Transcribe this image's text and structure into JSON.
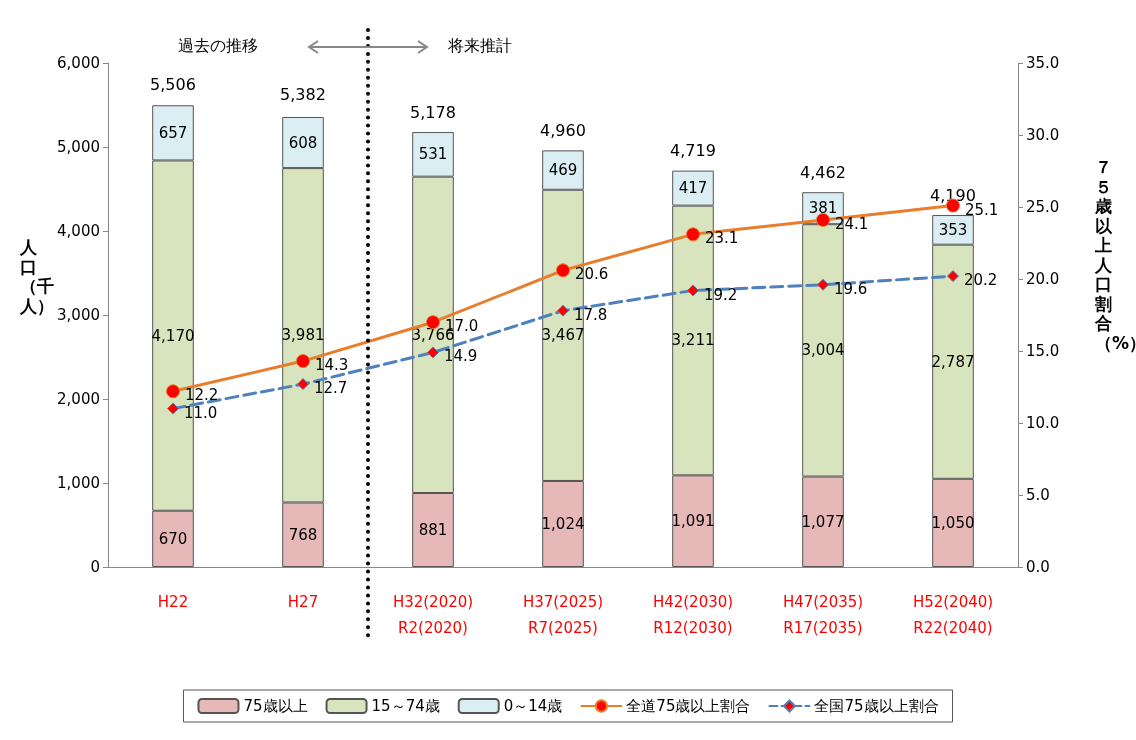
{
  "chart_data": {
    "type": "bar",
    "stacked": true,
    "ylabel": "人口（千人）",
    "y2label": "７５歳以上人口割合（%）",
    "annotations": [
      "過去の推移",
      "将来推計",
      {
        "text": "5,506",
        "x": "H22",
        "y": 5506
      },
      {
        "text": "5,382",
        "x": "H27",
        "y": 5382
      },
      {
        "text": "5,178",
        "x": "H32(2020)\nR2(2020)",
        "y": 5178
      },
      {
        "text": "4,960",
        "x": "H37(2025)\nR7(2025)",
        "y": 4960
      },
      {
        "text": "4,719",
        "x": "H42(2030)\nR12(2030)",
        "y": 4719
      },
      {
        "text": "4,462",
        "x": "H47(2035)\nR17(2035)",
        "y": 4462
      },
      {
        "text": "4,190",
        "x": "H52(2040)\nR22(2040)",
        "y": 4190
      }
    ],
    "categories": [
      "H22",
      "H27",
      "H32(2020)\nR2(2020)",
      "H37(2025)\nR7(2025)",
      "H42(2030)\nR12(2030)",
      "H47(2035)\nR17(2035)",
      "H52(2040)\nR22(2040)"
    ],
    "series": [
      {
        "name": "75歳以上",
        "color": "#e6b9b8",
        "values": [
          670,
          768,
          881,
          1024,
          1091,
          1077,
          1050
        ],
        "value_labels": [
          "670",
          "768",
          "881",
          "1,024",
          "1,091",
          "1,077",
          "1,050"
        ]
      },
      {
        "name": "15～74歳",
        "color": "#d7e4bd",
        "values": [
          4170,
          3981,
          3766,
          3467,
          3211,
          3004,
          2787
        ],
        "value_labels": [
          "4,170",
          "3,981",
          "3,766",
          "3,467",
          "3,211",
          "3,004",
          "2,787"
        ]
      },
      {
        "name": "0～14歳",
        "color": "#dbeef4",
        "values": [
          657,
          608,
          531,
          469,
          417,
          381,
          353
        ],
        "value_labels": [
          "657",
          "608",
          "531",
          "469",
          "417",
          "381",
          "353"
        ]
      },
      {
        "name": "全道75歳以上割合",
        "type": "line",
        "axis": "y2",
        "color": "#e87d2c",
        "marker": "circle",
        "line_style": "solid",
        "values": [
          12.2,
          14.3,
          17.0,
          20.6,
          23.1,
          24.1,
          25.1
        ],
        "value_labels": [
          "12.2",
          "14.3",
          "17.0",
          "20.6",
          "23.1",
          "24.1",
          "25.1"
        ]
      },
      {
        "name": "全国75歳以上割合",
        "type": "line",
        "axis": "y2",
        "color": "#4f81bd",
        "marker": "diamond",
        "line_style": "dashed",
        "values": [
          11.0,
          12.7,
          14.9,
          17.8,
          19.2,
          19.6,
          20.2
        ],
        "value_labels": [
          "11.0",
          "12.7",
          "14.9",
          "17.8",
          "19.2",
          "19.6",
          "20.2"
        ]
      }
    ],
    "ylim": [
      0,
      6000
    ],
    "yticks": [
      0,
      {
        "value": 1000,
        "label": "1,000"
      },
      {
        "value": 2000,
        "label": "2,000"
      },
      {
        "value": 3000,
        "label": "3,000"
      },
      {
        "value": 4000,
        "label": "4,000"
      },
      {
        "value": 5000,
        "label": "5,000"
      },
      {
        "value": 6000,
        "label": "6,000"
      }
    ],
    "y2lim": [
      0,
      35
    ],
    "y2ticks": [
      {
        "value": 0,
        "label": "0.0"
      },
      {
        "value": 5,
        "label": "5.0"
      },
      {
        "value": 10,
        "label": "10.0"
      },
      {
        "value": 15,
        "label": "15.0"
      },
      {
        "value": 20,
        "label": "20.0"
      },
      {
        "value": 25,
        "label": "25.0"
      },
      {
        "value": 30,
        "label": "30.0"
      },
      {
        "value": 35,
        "label": "35.0"
      }
    ],
    "legend": "bottom"
  }
}
